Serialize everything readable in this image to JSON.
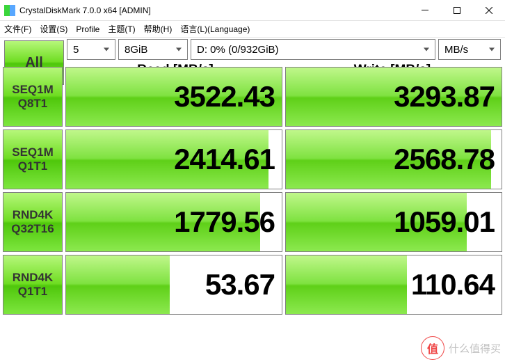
{
  "window": {
    "title": "CrystalDiskMark 7.0.0 x64 [ADMIN]",
    "icon_color_1": "#3bd63b",
    "icon_color_2": "#58a7ff"
  },
  "menu": {
    "file": "文件(F)",
    "settings": "设置(S)",
    "profile": "Profile",
    "theme": "主题(T)",
    "help": "帮助(H)",
    "language": "语言(L)(Language)"
  },
  "buttons": {
    "all": "All"
  },
  "selects": {
    "count": "5",
    "size": "8GiB",
    "drive": "D: 0% (0/932GiB)",
    "unit": "MB/s"
  },
  "headers": {
    "read": "Read [MB/s]",
    "write": "Write [MB/s]"
  },
  "tests": [
    {
      "label1": "SEQ1M",
      "label2": "Q8T1",
      "read": "3522.43",
      "read_pct": 100,
      "write": "3293.87",
      "write_pct": 100
    },
    {
      "label1": "SEQ1M",
      "label2": "Q1T1",
      "read": "2414.61",
      "read_pct": 94,
      "write": "2568.78",
      "write_pct": 95
    },
    {
      "label1": "RND4K",
      "label2": "Q32T16",
      "read": "1779.56",
      "read_pct": 90,
      "write": "1059.01",
      "write_pct": 84
    },
    {
      "label1": "RND4K",
      "label2": "Q1T1",
      "read": "53.67",
      "read_pct": 48,
      "write": "110.64",
      "write_pct": 56
    }
  ],
  "watermark": {
    "symbol": "值",
    "text": "什么值得买"
  },
  "colors": {
    "green_light": "#b6f77a",
    "green_mid": "#6fdd22",
    "green_dark": "#4fc70b",
    "border": "#808080"
  }
}
